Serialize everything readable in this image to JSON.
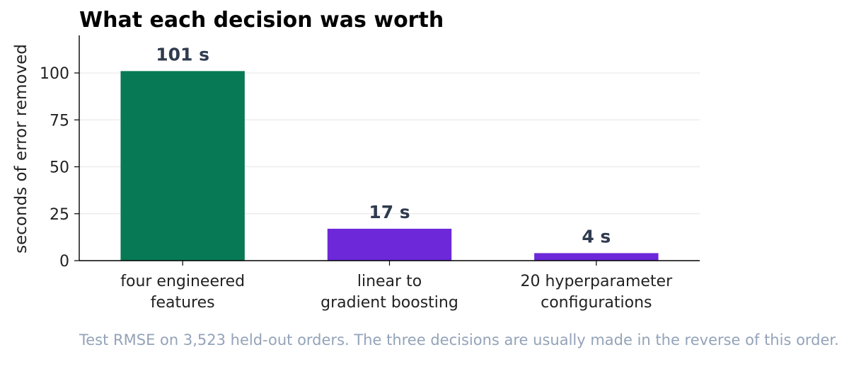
{
  "chart_data": {
    "type": "bar",
    "title": "What each decision was worth",
    "ylabel": "seconds of error removed",
    "xlabel": "",
    "ylim": [
      0,
      120
    ],
    "yticks": [
      0,
      25,
      50,
      75,
      100
    ],
    "grid": true,
    "categories": [
      [
        "four engineered",
        "features"
      ],
      [
        "linear to",
        "gradient boosting"
      ],
      [
        "20 hyperparameter",
        "configurations"
      ]
    ],
    "values": [
      101,
      17,
      4
    ],
    "data_labels": [
      "101 s",
      "17 s",
      "4 s"
    ],
    "colors": [
      "#077a55",
      "#6d28d9",
      "#6d28d9"
    ]
  },
  "caption": "Test RMSE on 3,523 held-out orders. The three decisions are usually made in the reverse of this order."
}
